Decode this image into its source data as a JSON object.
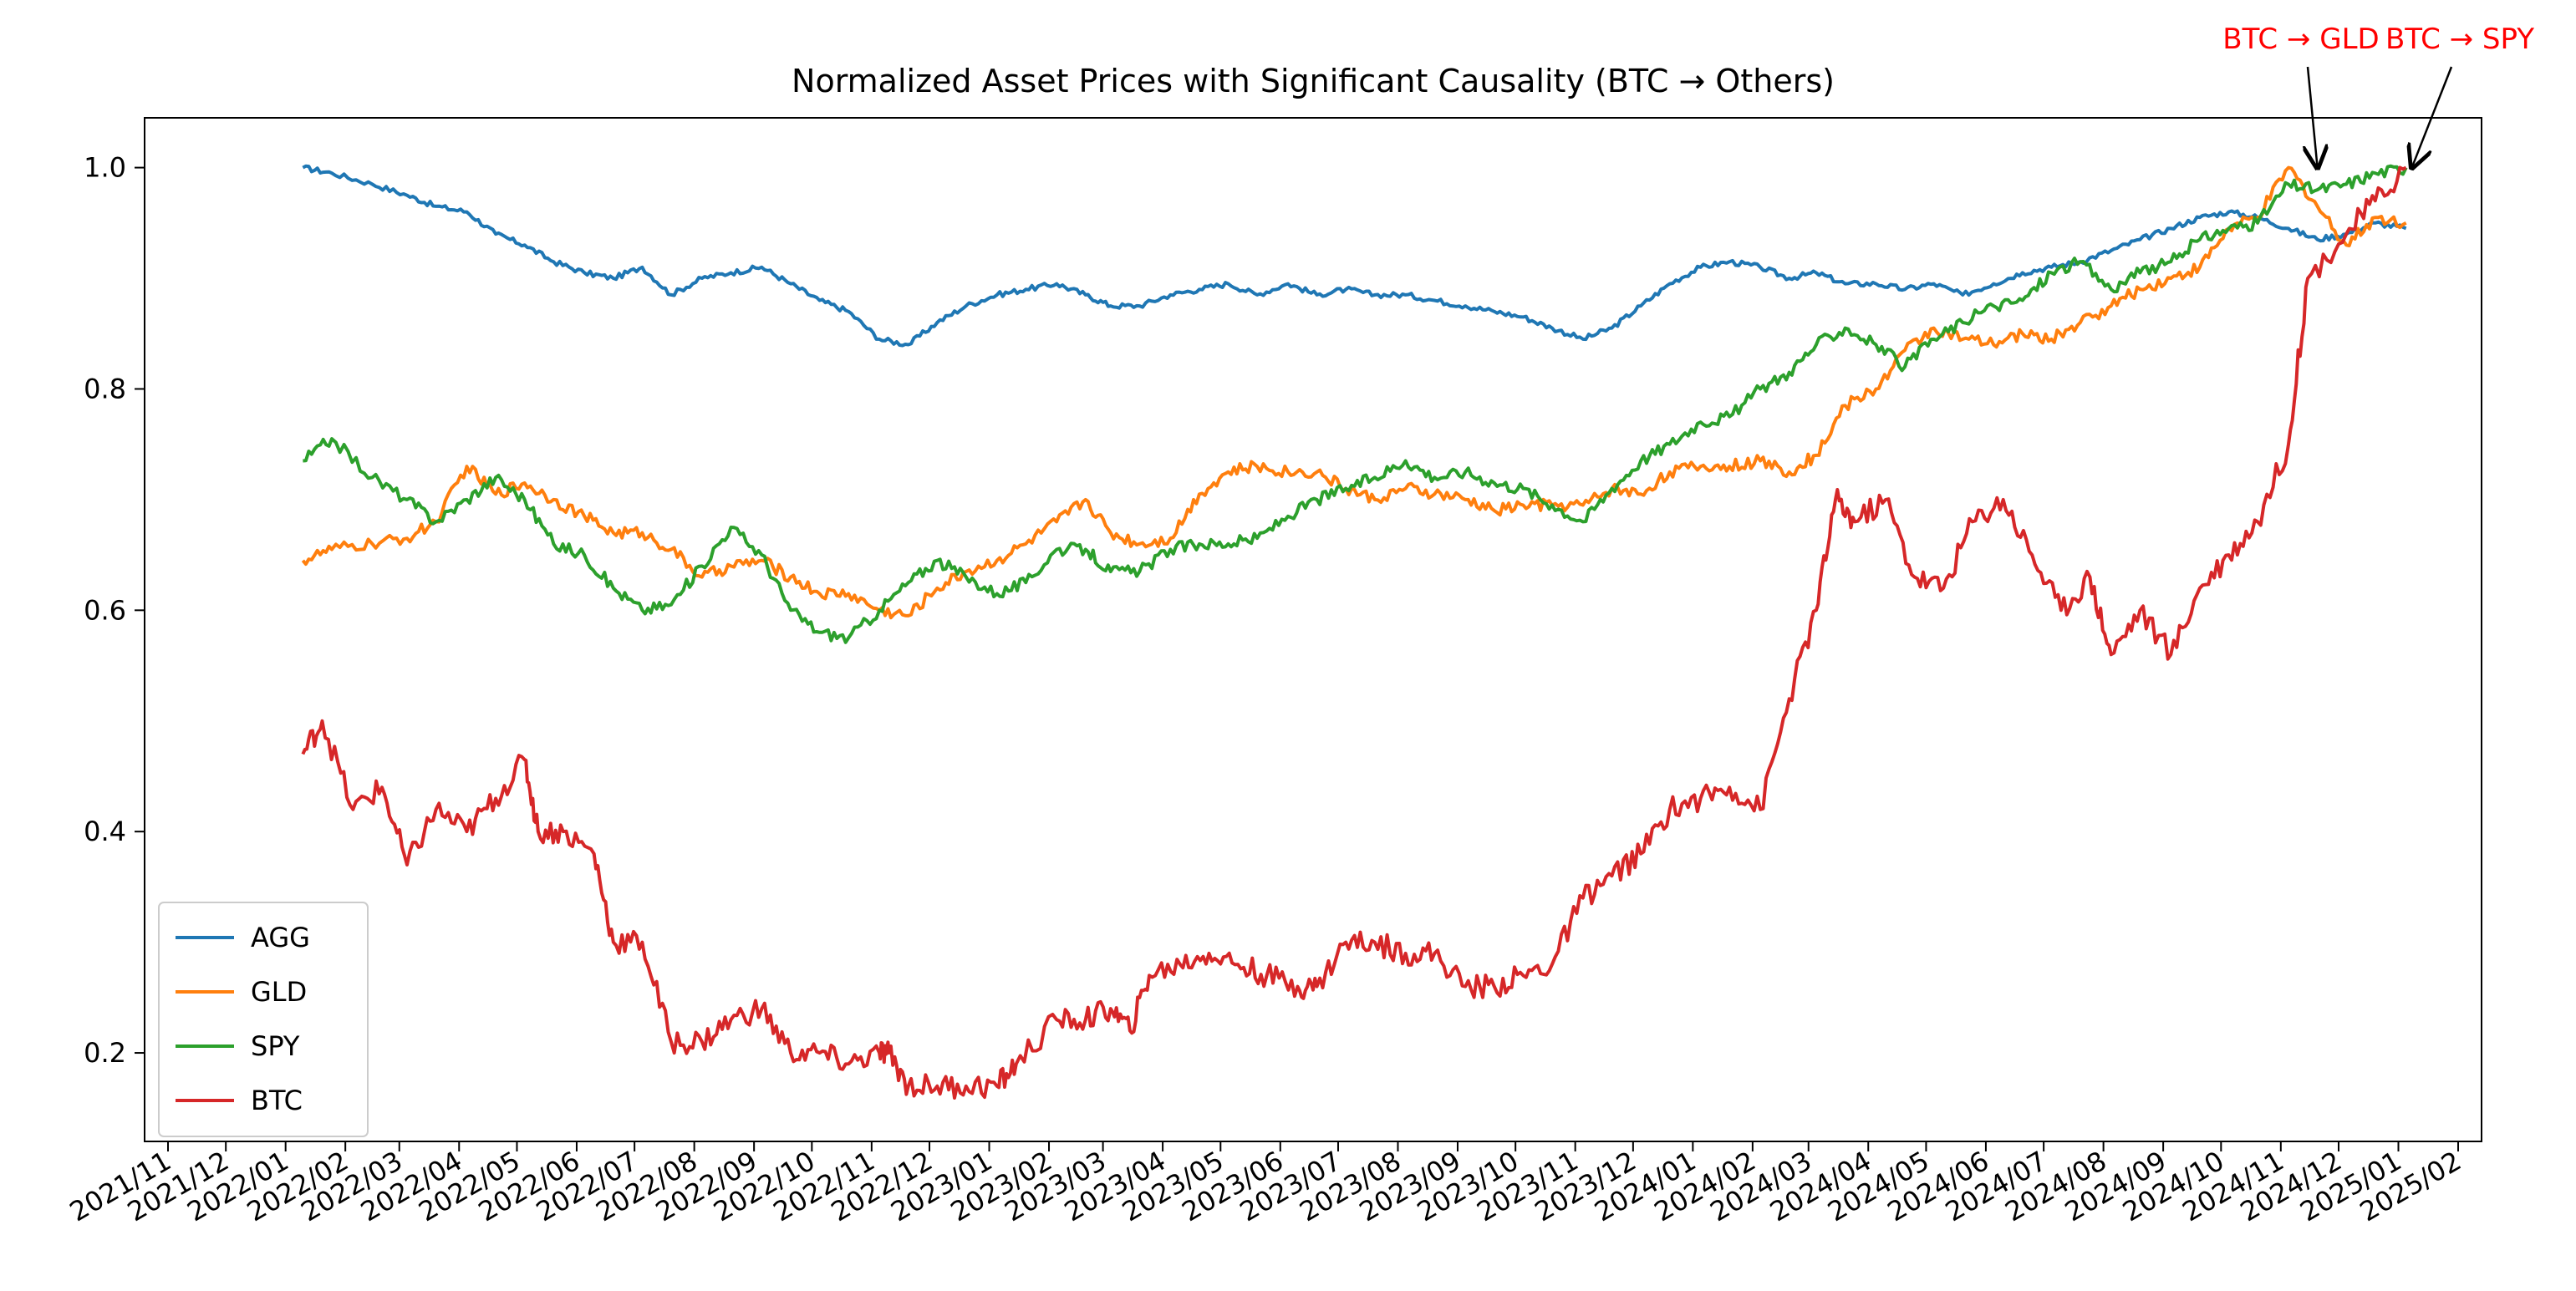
{
  "chart_data": {
    "type": "line",
    "title": "Normalized Asset Prices with Significant Causality (BTC → Others)",
    "xlabel": "",
    "ylabel": "",
    "x_range": [
      "2021-11-01",
      "2025-02-01"
    ],
    "ylim": [
      0.12,
      1.045
    ],
    "yticks": [
      0.2,
      0.4,
      0.6,
      0.8,
      1.0
    ],
    "ytick_labels": [
      "0.2",
      "0.4",
      "0.6",
      "0.8",
      "1.0"
    ],
    "xtick_dates": [
      "2021-11-01",
      "2021-12-01",
      "2022-01-01",
      "2022-02-01",
      "2022-03-01",
      "2022-04-01",
      "2022-05-01",
      "2022-06-01",
      "2022-07-01",
      "2022-08-01",
      "2022-09-01",
      "2022-10-01",
      "2022-11-01",
      "2022-12-01",
      "2023-01-01",
      "2023-02-01",
      "2023-03-01",
      "2023-04-01",
      "2023-05-01",
      "2023-06-01",
      "2023-07-01",
      "2023-08-01",
      "2023-09-01",
      "2023-10-01",
      "2023-11-01",
      "2023-12-01",
      "2024-01-01",
      "2024-02-01",
      "2024-03-01",
      "2024-04-01",
      "2024-05-01",
      "2024-06-01",
      "2024-07-01",
      "2024-08-01",
      "2024-09-01",
      "2024-10-01",
      "2024-11-01",
      "2024-12-01",
      "2025-01-01",
      "2025-02-01"
    ],
    "xtick_labels": [
      "2021/11",
      "2021/12",
      "2022/01",
      "2022/02",
      "2022/03",
      "2022/04",
      "2022/05",
      "2022/06",
      "2022/07",
      "2022/08",
      "2022/09",
      "2022/10",
      "2022/11",
      "2022/12",
      "2023/01",
      "2023/02",
      "2023/03",
      "2023/04",
      "2023/05",
      "2023/06",
      "2023/07",
      "2023/08",
      "2023/09",
      "2023/10",
      "2023/11",
      "2023/12",
      "2024/01",
      "2024/02",
      "2024/03",
      "2024/04",
      "2024/05",
      "2024/06",
      "2024/07",
      "2024/08",
      "2024/09",
      "2024/10",
      "2024/11",
      "2024/12",
      "2025/01",
      "2025/02"
    ],
    "grid": false,
    "legend_placement": "lower-left",
    "series": [
      {
        "name": "AGG",
        "color": "#1f77b4",
        "x": [
          "2022-01-10",
          "2022-01-25",
          "2022-02-15",
          "2022-03-05",
          "2022-03-20",
          "2022-04-05",
          "2022-04-20",
          "2022-05-05",
          "2022-05-20",
          "2022-06-05",
          "2022-06-20",
          "2022-07-05",
          "2022-07-20",
          "2022-08-05",
          "2022-08-20",
          "2022-09-05",
          "2022-09-20",
          "2022-10-05",
          "2022-10-20",
          "2022-11-05",
          "2022-11-20",
          "2022-12-05",
          "2022-12-20",
          "2023-01-05",
          "2023-01-20",
          "2023-02-05",
          "2023-02-20",
          "2023-03-05",
          "2023-03-20",
          "2023-04-05",
          "2023-04-20",
          "2023-05-05",
          "2023-05-20",
          "2023-06-05",
          "2023-06-20",
          "2023-07-05",
          "2023-07-20",
          "2023-08-05",
          "2023-08-20",
          "2023-09-05",
          "2023-09-20",
          "2023-10-05",
          "2023-10-20",
          "2023-11-05",
          "2023-11-20",
          "2023-12-05",
          "2023-12-20",
          "2024-01-05",
          "2024-01-20",
          "2024-02-05",
          "2024-02-20",
          "2024-03-05",
          "2024-03-20",
          "2024-04-05",
          "2024-04-20",
          "2024-05-05",
          "2024-05-20",
          "2024-06-05",
          "2024-06-20",
          "2024-07-05",
          "2024-07-20",
          "2024-08-05",
          "2024-08-20",
          "2024-09-05",
          "2024-09-20",
          "2024-10-05",
          "2024-10-20",
          "2024-11-05",
          "2024-11-20",
          "2024-12-05",
          "2024-12-20",
          "2025-01-05"
        ],
        "values": [
          1.0,
          0.995,
          0.985,
          0.975,
          0.965,
          0.96,
          0.94,
          0.93,
          0.915,
          0.905,
          0.9,
          0.91,
          0.885,
          0.9,
          0.905,
          0.91,
          0.895,
          0.88,
          0.87,
          0.845,
          0.84,
          0.86,
          0.875,
          0.885,
          0.89,
          0.895,
          0.885,
          0.875,
          0.875,
          0.885,
          0.89,
          0.895,
          0.885,
          0.895,
          0.885,
          0.89,
          0.885,
          0.885,
          0.88,
          0.875,
          0.87,
          0.865,
          0.855,
          0.845,
          0.855,
          0.875,
          0.895,
          0.91,
          0.915,
          0.91,
          0.9,
          0.905,
          0.895,
          0.895,
          0.89,
          0.895,
          0.885,
          0.895,
          0.905,
          0.91,
          0.915,
          0.925,
          0.935,
          0.945,
          0.955,
          0.96,
          0.955,
          0.945,
          0.935,
          0.94,
          0.95,
          0.945
        ]
      },
      {
        "name": "GLD",
        "color": "#ff7f0e",
        "x": [
          "2022-01-10",
          "2022-01-25",
          "2022-02-15",
          "2022-03-05",
          "2022-03-20",
          "2022-04-05",
          "2022-04-20",
          "2022-05-05",
          "2022-05-20",
          "2022-06-05",
          "2022-06-20",
          "2022-07-05",
          "2022-07-20",
          "2022-08-05",
          "2022-08-20",
          "2022-09-05",
          "2022-09-20",
          "2022-10-05",
          "2022-10-20",
          "2022-11-05",
          "2022-11-20",
          "2022-12-05",
          "2022-12-20",
          "2023-01-05",
          "2023-01-20",
          "2023-02-05",
          "2023-02-20",
          "2023-03-05",
          "2023-03-20",
          "2023-04-05",
          "2023-04-20",
          "2023-05-05",
          "2023-05-20",
          "2023-06-05",
          "2023-06-20",
          "2023-07-05",
          "2023-07-20",
          "2023-08-05",
          "2023-08-20",
          "2023-09-05",
          "2023-09-20",
          "2023-10-05",
          "2023-10-20",
          "2023-11-05",
          "2023-11-20",
          "2023-12-05",
          "2023-12-20",
          "2024-01-05",
          "2024-01-20",
          "2024-02-05",
          "2024-02-20",
          "2024-03-05",
          "2024-03-20",
          "2024-04-05",
          "2024-04-20",
          "2024-05-05",
          "2024-05-20",
          "2024-06-05",
          "2024-06-20",
          "2024-07-05",
          "2024-07-20",
          "2024-08-05",
          "2024-08-20",
          "2024-09-05",
          "2024-09-20",
          "2024-10-05",
          "2024-10-20",
          "2024-11-05",
          "2024-11-20",
          "2024-12-05",
          "2024-12-20",
          "2025-01-05"
        ],
        "values": [
          0.645,
          0.655,
          0.66,
          0.665,
          0.68,
          0.73,
          0.705,
          0.715,
          0.7,
          0.685,
          0.67,
          0.67,
          0.655,
          0.63,
          0.64,
          0.645,
          0.63,
          0.615,
          0.615,
          0.6,
          0.595,
          0.62,
          0.635,
          0.645,
          0.66,
          0.68,
          0.7,
          0.67,
          0.66,
          0.665,
          0.705,
          0.725,
          0.73,
          0.725,
          0.725,
          0.71,
          0.7,
          0.71,
          0.705,
          0.7,
          0.69,
          0.695,
          0.695,
          0.695,
          0.71,
          0.705,
          0.725,
          0.73,
          0.73,
          0.735,
          0.725,
          0.74,
          0.785,
          0.8,
          0.835,
          0.855,
          0.845,
          0.84,
          0.85,
          0.845,
          0.86,
          0.875,
          0.89,
          0.9,
          0.91,
          0.945,
          0.955,
          1.0,
          0.965,
          0.93,
          0.955,
          0.95
        ]
      },
      {
        "name": "SPY",
        "color": "#2ca02c",
        "x": [
          "2022-01-10",
          "2022-01-25",
          "2022-02-15",
          "2022-03-05",
          "2022-03-20",
          "2022-04-05",
          "2022-04-20",
          "2022-05-05",
          "2022-05-20",
          "2022-06-05",
          "2022-06-20",
          "2022-07-05",
          "2022-07-20",
          "2022-08-05",
          "2022-08-20",
          "2022-09-05",
          "2022-09-20",
          "2022-10-05",
          "2022-10-20",
          "2022-11-05",
          "2022-11-20",
          "2022-12-05",
          "2022-12-20",
          "2023-01-05",
          "2023-01-20",
          "2023-02-05",
          "2023-02-20",
          "2023-03-05",
          "2023-03-20",
          "2023-04-05",
          "2023-04-20",
          "2023-05-05",
          "2023-05-20",
          "2023-06-05",
          "2023-06-20",
          "2023-07-05",
          "2023-07-20",
          "2023-08-05",
          "2023-08-20",
          "2023-09-05",
          "2023-09-20",
          "2023-10-05",
          "2023-10-20",
          "2023-11-05",
          "2023-11-20",
          "2023-12-05",
          "2023-12-20",
          "2024-01-05",
          "2024-01-20",
          "2024-02-05",
          "2024-02-20",
          "2024-03-05",
          "2024-03-20",
          "2024-04-05",
          "2024-04-20",
          "2024-05-05",
          "2024-05-20",
          "2024-06-05",
          "2024-06-20",
          "2024-07-05",
          "2024-07-20",
          "2024-08-05",
          "2024-08-20",
          "2024-09-05",
          "2024-09-20",
          "2024-10-05",
          "2024-10-20",
          "2024-11-05",
          "2024-11-20",
          "2024-12-05",
          "2024-12-20",
          "2025-01-05"
        ],
        "values": [
          0.735,
          0.755,
          0.72,
          0.7,
          0.68,
          0.7,
          0.72,
          0.7,
          0.66,
          0.65,
          0.62,
          0.6,
          0.605,
          0.64,
          0.675,
          0.65,
          0.6,
          0.58,
          0.575,
          0.6,
          0.625,
          0.645,
          0.63,
          0.615,
          0.625,
          0.655,
          0.655,
          0.635,
          0.635,
          0.655,
          0.66,
          0.66,
          0.665,
          0.685,
          0.7,
          0.71,
          0.72,
          0.735,
          0.72,
          0.725,
          0.715,
          0.71,
          0.695,
          0.68,
          0.71,
          0.735,
          0.75,
          0.77,
          0.775,
          0.8,
          0.815,
          0.84,
          0.855,
          0.84,
          0.82,
          0.845,
          0.86,
          0.875,
          0.88,
          0.905,
          0.915,
          0.89,
          0.905,
          0.915,
          0.935,
          0.945,
          0.95,
          0.985,
          0.98,
          0.985,
          0.995,
          1.0
        ]
      },
      {
        "name": "BTC",
        "color": "#d62728",
        "x": [
          "2022-01-10",
          "2022-01-20",
          "2022-02-05",
          "2022-02-20",
          "2022-03-05",
          "2022-03-20",
          "2022-04-05",
          "2022-04-20",
          "2022-05-05",
          "2022-05-12",
          "2022-05-25",
          "2022-06-10",
          "2022-06-20",
          "2022-07-05",
          "2022-07-20",
          "2022-08-05",
          "2022-08-20",
          "2022-09-05",
          "2022-09-20",
          "2022-10-05",
          "2022-10-20",
          "2022-11-05",
          "2022-11-10",
          "2022-11-20",
          "2022-12-05",
          "2022-12-20",
          "2023-01-05",
          "2023-01-15",
          "2023-02-05",
          "2023-02-20",
          "2023-03-05",
          "2023-03-15",
          "2023-03-25",
          "2023-04-10",
          "2023-04-25",
          "2023-05-10",
          "2023-05-25",
          "2023-06-10",
          "2023-06-20",
          "2023-07-05",
          "2023-07-20",
          "2023-08-05",
          "2023-08-20",
          "2023-09-05",
          "2023-09-20",
          "2023-10-05",
          "2023-10-20",
          "2023-11-05",
          "2023-11-20",
          "2023-12-05",
          "2023-12-20",
          "2024-01-05",
          "2024-01-20",
          "2024-02-05",
          "2024-02-20",
          "2024-03-05",
          "2024-03-15",
          "2024-03-25",
          "2024-04-10",
          "2024-04-25",
          "2024-05-10",
          "2024-05-25",
          "2024-06-10",
          "2024-06-25",
          "2024-07-10",
          "2024-07-25",
          "2024-08-05",
          "2024-08-20",
          "2024-09-05",
          "2024-09-20",
          "2024-10-05",
          "2024-10-20",
          "2024-11-05",
          "2024-11-15",
          "2024-12-05",
          "2024-12-20",
          "2025-01-05"
        ],
        "values": [
          0.47,
          0.5,
          0.42,
          0.44,
          0.37,
          0.42,
          0.4,
          0.43,
          0.465,
          0.4,
          0.4,
          0.38,
          0.3,
          0.3,
          0.21,
          0.21,
          0.23,
          0.24,
          0.2,
          0.2,
          0.19,
          0.2,
          0.2,
          0.17,
          0.17,
          0.17,
          0.17,
          0.19,
          0.23,
          0.23,
          0.24,
          0.22,
          0.27,
          0.28,
          0.29,
          0.28,
          0.27,
          0.26,
          0.26,
          0.3,
          0.3,
          0.29,
          0.29,
          0.26,
          0.26,
          0.27,
          0.28,
          0.34,
          0.36,
          0.38,
          0.42,
          0.43,
          0.44,
          0.42,
          0.52,
          0.6,
          0.7,
          0.68,
          0.7,
          0.63,
          0.62,
          0.68,
          0.7,
          0.65,
          0.6,
          0.63,
          0.56,
          0.6,
          0.56,
          0.62,
          0.65,
          0.68,
          0.75,
          0.9,
          0.94,
          0.97,
          1.0
        ]
      }
    ],
    "annotations": [
      {
        "text": "BTC → GLD",
        "color": "#ff0000",
        "arrow_to": {
          "x": "2024-11-20",
          "y": 1.0
        }
      },
      {
        "text": "BTC → SPY",
        "color": "#ff0000",
        "arrow_to": {
          "x": "2025-01-08",
          "y": 1.0
        }
      }
    ]
  }
}
